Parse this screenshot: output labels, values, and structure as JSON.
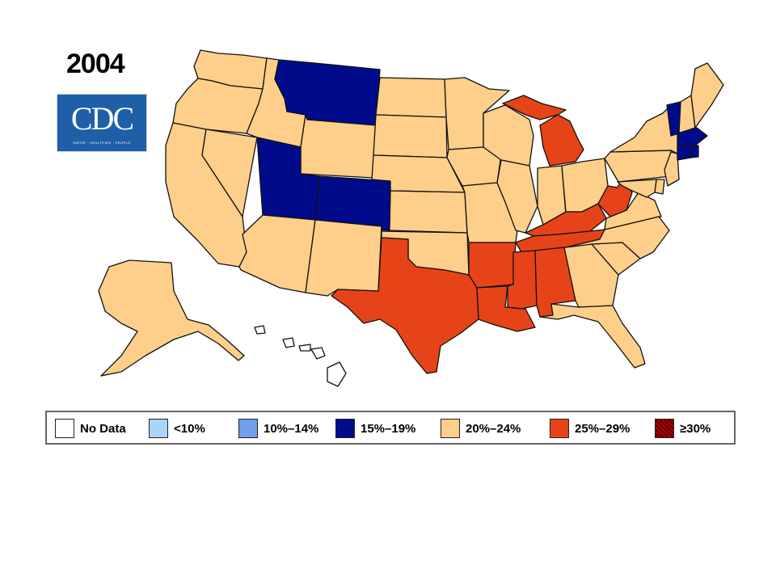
{
  "year": "2004",
  "logo": {
    "text": "CDC",
    "tagline": "SAFER · HEALTHIER · PEOPLE"
  },
  "colors": {
    "no_data": "#ffffff",
    "lt10": "#a9d4fb",
    "10_14": "#6e9fe8",
    "15_19": "#000b8c",
    "20_24": "#fdcf8a",
    "25_29": "#e64418",
    "ge30": "#8a0000",
    "border": "#111111"
  },
  "legend": [
    {
      "label": "No Data",
      "category": "no_data"
    },
    {
      "label": "<10%",
      "category": "lt10"
    },
    {
      "label": "10%–14%",
      "category": "10_14"
    },
    {
      "label": "15%–19%",
      "category": "15_19"
    },
    {
      "label": "20%–24%",
      "category": "20_24"
    },
    {
      "label": "25%–29%",
      "category": "25_29"
    },
    {
      "label": "≥30%",
      "category": "ge30"
    }
  ],
  "states": {
    "WA": "20_24",
    "OR": "20_24",
    "CA": "20_24",
    "NV": "20_24",
    "ID": "20_24",
    "MT": "15_19",
    "WY": "20_24",
    "UT": "15_19",
    "CO": "15_19",
    "AZ": "20_24",
    "NM": "20_24",
    "ND": "20_24",
    "SD": "20_24",
    "NE": "20_24",
    "KS": "20_24",
    "OK": "20_24",
    "TX": "25_29",
    "MN": "20_24",
    "IA": "20_24",
    "MO": "20_24",
    "AR": "25_29",
    "LA": "25_29",
    "WI": "20_24",
    "IL": "20_24",
    "MI": "25_29",
    "IN": "20_24",
    "OH": "20_24",
    "KY": "25_29",
    "TN": "25_29",
    "MS": "25_29",
    "AL": "25_29",
    "GA": "20_24",
    "FL": "20_24",
    "SC": "20_24",
    "NC": "20_24",
    "VA": "20_24",
    "WV": "25_29",
    "PA": "20_24",
    "NY": "20_24",
    "VT": "15_19",
    "NH": "20_24",
    "ME": "20_24",
    "MA": "15_19",
    "CT": "15_19",
    "RI": "15_19",
    "NJ": "20_24",
    "DE": "20_24",
    "MD": "20_24",
    "AK": "20_24",
    "HI": "no_data"
  }
}
